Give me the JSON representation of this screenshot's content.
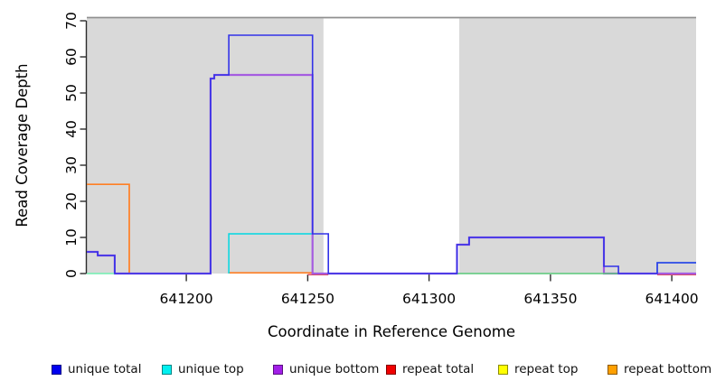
{
  "chart_data": {
    "type": "line",
    "subtype": "step-coverage",
    "xlabel": "Coordinate in Reference Genome",
    "ylabel": "Read Coverage Depth",
    "xlim": [
      641159,
      641410
    ],
    "ylim": [
      0,
      70
    ],
    "x_ticks": [
      641200,
      641250,
      641300,
      641350,
      641400
    ],
    "y_ticks": [
      0,
      10,
      20,
      30,
      40,
      50,
      60,
      70
    ],
    "grid": false,
    "plot_background": "#ffffff",
    "shaded_regions": [
      {
        "x0": 641159,
        "x1": 641256.5,
        "color": "#d9d9d9"
      },
      {
        "x0": 641312.4,
        "x1": 641410,
        "color": "#d9d9d9"
      }
    ],
    "boundary_line": {
      "value": 70.9,
      "color": "#8f8f8f"
    },
    "series": [
      {
        "name": "unique total",
        "color": "#3232e8",
        "legend_color": "#0000f0",
        "width": 1.6,
        "dy": 0,
        "segments": [
          [
            [
              641159,
              6
            ],
            [
              641163.5,
              6
            ],
            [
              641163.5,
              5
            ],
            [
              641170.5,
              5
            ],
            [
              641170.5,
              0
            ],
            [
              641210,
              0
            ],
            [
              641210,
              54
            ],
            [
              641211.5,
              54
            ],
            [
              641211.5,
              55
            ],
            [
              641217.5,
              55
            ],
            [
              641217.5,
              66
            ],
            [
              641252,
              66
            ],
            [
              641252,
              11
            ],
            [
              641258.5,
              11
            ],
            [
              641258.5,
              0
            ],
            [
              641311.5,
              0
            ],
            [
              641311.5,
              8
            ],
            [
              641316.5,
              8
            ],
            [
              641316.5,
              10
            ],
            [
              641372,
              10
            ],
            [
              641372,
              2
            ],
            [
              641378,
              2
            ],
            [
              641378,
              0
            ],
            [
              641394,
              0
            ],
            [
              641394,
              3
            ],
            [
              641410,
              3
            ]
          ]
        ]
      },
      {
        "name": "unique top",
        "color": "#00d8e2",
        "legend_color": "#00f0f0",
        "width": 1.5,
        "dy": 0,
        "segments": [
          [
            [
              641217.5,
              0
            ],
            [
              641217.5,
              11
            ],
            [
              641252,
              11
            ],
            [
              641252,
              0
            ]
          ],
          [
            [
              641394,
              0
            ],
            [
              641394,
              3
            ],
            [
              641410,
              3
            ]
          ]
        ]
      },
      {
        "name": "unique bottom",
        "color": "#a55ce0",
        "legend_color": "#a21fe8",
        "width": 2.2,
        "dy": 0,
        "segments": [
          [
            [
              641159,
              6
            ],
            [
              641163.5,
              6
            ],
            [
              641163.5,
              5
            ],
            [
              641170.5,
              5
            ],
            [
              641170.5,
              0
            ],
            [
              641210,
              0
            ],
            [
              641210,
              54
            ],
            [
              641211.5,
              54
            ],
            [
              641211.5,
              55
            ],
            [
              641252,
              55
            ],
            [
              641252,
              0
            ],
            [
              641311.5,
              0
            ],
            [
              641311.5,
              8
            ],
            [
              641316.5,
              8
            ],
            [
              641316.5,
              10
            ],
            [
              641372,
              10
            ],
            [
              641372,
              0
            ],
            [
              641410,
              0
            ]
          ]
        ]
      },
      {
        "name": "repeat total",
        "color": "#e04858",
        "legend_color": "#f00000",
        "width": 1.5,
        "dy": 1.2,
        "segments": [
          [
            [
              641250,
              0
            ],
            [
              641258.5,
              0
            ]
          ],
          [
            [
              641394,
              0
            ],
            [
              641410,
              0
            ]
          ]
        ]
      },
      {
        "name": "repeat top",
        "color": "#ffff00",
        "legend_color": "#ffff00",
        "width": 1.5,
        "dy": 0,
        "segments": []
      },
      {
        "name": "repeat bottom",
        "color": "#ff7f24",
        "legend_color": "#ffa000",
        "width": 1.7,
        "dy": -0.8,
        "segments": [
          [
            [
              641159,
              24.5
            ],
            [
              641176.5,
              24.5
            ],
            [
              641176.5,
              0
            ]
          ],
          [
            [
              641217.5,
              0
            ],
            [
              641252,
              0
            ]
          ]
        ]
      }
    ],
    "overlap_artifacts": [
      {
        "name": "top-bottom overlap left",
        "color": "#70efb0",
        "points": [
          [
            641159,
            0
          ],
          [
            641170.5,
            0
          ]
        ]
      },
      {
        "name": "top-bottom overlap right",
        "color": "#58c878",
        "points": [
          [
            641311.5,
            0
          ],
          [
            641378,
            0
          ]
        ]
      }
    ]
  },
  "legend": {
    "items": [
      {
        "label": "unique total",
        "color": "#0000f0"
      },
      {
        "label": "unique top",
        "color": "#00f0f0"
      },
      {
        "label": "unique bottom",
        "color": "#a21fe8"
      },
      {
        "label": "repeat total",
        "color": "#f00000"
      },
      {
        "label": "repeat top",
        "color": "#ffff00"
      },
      {
        "label": "repeat bottom",
        "color": "#ffa000"
      }
    ]
  }
}
